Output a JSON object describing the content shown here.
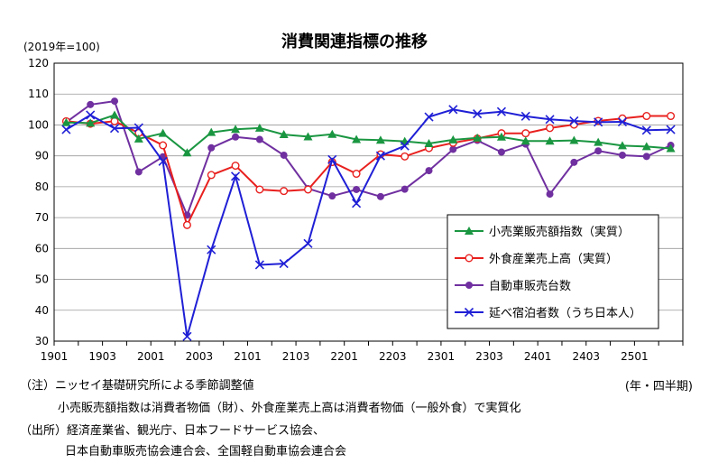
{
  "chart_data": {
    "type": "line",
    "title": "消費関連指標の推移",
    "unit_label": "(2019年=100)",
    "xlabel": "(年・四半期)",
    "ylim": [
      30,
      120
    ],
    "yticks": [
      30,
      40,
      50,
      60,
      70,
      80,
      90,
      100,
      110,
      120
    ],
    "x": [
      "1901",
      "1902",
      "1903",
      "1904",
      "2001",
      "2002",
      "2003",
      "2004",
      "2101",
      "2102",
      "2103",
      "2104",
      "2201",
      "2202",
      "2203",
      "2204",
      "2301",
      "2302",
      "2303",
      "2304",
      "2401",
      "2402",
      "2403",
      "2404",
      "2501",
      "2502"
    ],
    "xtick_labels": [
      "1901",
      "1903",
      "2001",
      "2003",
      "2101",
      "2103",
      "2201",
      "2203",
      "2301",
      "2303",
      "2401",
      "2403",
      "2501"
    ],
    "grid": "horizontal",
    "legend_position": "bottom-right",
    "series": [
      {
        "name": "小売業販売額指数（実質）",
        "color": "#1a9641",
        "marker": "triangle",
        "values": [
          100.8,
          100.6,
          103.2,
          95.5,
          97.3,
          91.0,
          97.6,
          98.6,
          99.0,
          96.9,
          96.2,
          97.0,
          95.3,
          95.1,
          94.7,
          94.0,
          95.2,
          95.8,
          96.1,
          94.8,
          94.8,
          95.0,
          94.4,
          93.3,
          93.0,
          92.4
        ]
      },
      {
        "name": "外食産業売上高（実質）",
        "color": "#e8201e",
        "marker": "circle-open",
        "values": [
          101.2,
          100.4,
          101.2,
          97.4,
          93.4,
          67.6,
          83.8,
          86.8,
          79.1,
          78.6,
          79.1,
          88.0,
          84.2,
          90.5,
          89.8,
          92.5,
          94.2,
          95.6,
          97.3,
          97.3,
          99.0,
          100.1,
          101.3,
          102.1,
          102.9,
          102.9
        ]
      },
      {
        "name": "自動車販売台数",
        "color": "#7030a0",
        "marker": "circle",
        "values": [
          100.9,
          106.6,
          107.7,
          84.8,
          89.7,
          70.8,
          92.6,
          96.1,
          95.3,
          90.2,
          79.4,
          77.0,
          79.1,
          76.8,
          79.2,
          85.2,
          92.1,
          95.0,
          91.2,
          93.8,
          77.6,
          87.9,
          91.6,
          90.2,
          89.8,
          93.4
        ]
      },
      {
        "name": "延べ宿泊者数（うち日本人）",
        "color": "#1f1fd6",
        "marker": "x",
        "values": [
          98.5,
          103.2,
          98.9,
          99.1,
          88.2,
          31.5,
          59.6,
          83.4,
          54.7,
          55.1,
          61.6,
          88.8,
          74.6,
          90.0,
          93.2,
          102.6,
          105.0,
          103.6,
          104.3,
          102.8,
          101.8,
          101.3,
          100.9,
          101.0,
          98.3,
          98.5
        ]
      }
    ]
  },
  "notes": [
    "（注）ニッセイ基礎研究所による季節調整値",
    "小売販売額指数は消費者物価（財）、外食産業売上高は消費者物価（一般外食）で実質化",
    "（出所）経済産業省、観光庁、日本フードサービス協会、",
    "日本自動車販売協会連合会、全国軽自動車協会連合会"
  ]
}
